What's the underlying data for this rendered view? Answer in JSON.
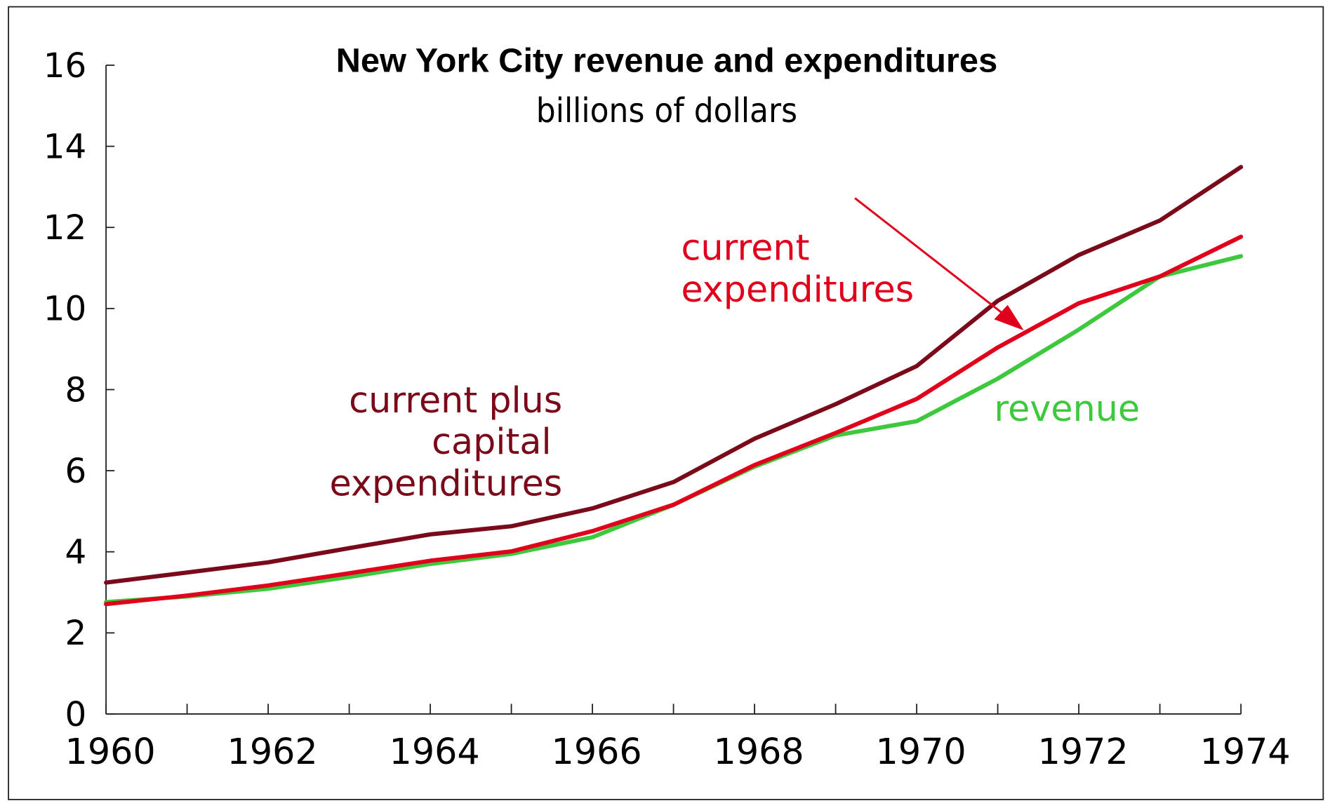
{
  "chart_data": {
    "type": "line",
    "title": "New York City revenue and expenditures",
    "subtitle": "billions of dollars",
    "xlabel": "",
    "ylabel": "",
    "xlim": [
      1960,
      1974
    ],
    "ylim": [
      0,
      16
    ],
    "grid": false,
    "x": [
      1960,
      1961,
      1962,
      1963,
      1964,
      1965,
      1966,
      1967,
      1968,
      1969,
      1970,
      1971,
      1972,
      1973,
      1974
    ],
    "x_tick_labels": [
      "1960",
      "1962",
      "1964",
      "1966",
      "1968",
      "1970",
      "1972",
      "1974"
    ],
    "y_tick_labels": [
      "0",
      "2",
      "4",
      "6",
      "8",
      "10",
      "12",
      "14",
      "16"
    ],
    "series": [
      {
        "name": "current plus capital expenditures",
        "label_lines": [
          "current plus",
          "capital",
          "expenditures"
        ],
        "color": "#7a0a1a",
        "values": [
          3.24,
          3.49,
          3.74,
          4.09,
          4.43,
          4.63,
          5.07,
          5.72,
          6.79,
          7.64,
          8.58,
          10.19,
          11.32,
          12.17,
          13.49
        ]
      },
      {
        "name": "current expenditures",
        "label_lines": [
          "current",
          "expenditures"
        ],
        "color": "#e0001b",
        "values": [
          2.71,
          2.92,
          3.17,
          3.47,
          3.78,
          4.01,
          4.51,
          5.16,
          6.14,
          6.93,
          7.77,
          9.04,
          10.13,
          10.79,
          11.77
        ]
      },
      {
        "name": "revenue",
        "label_lines": [
          "revenue"
        ],
        "color": "#3ec83e",
        "values": [
          2.76,
          2.9,
          3.09,
          3.38,
          3.7,
          3.95,
          4.36,
          5.16,
          6.1,
          6.87,
          7.22,
          8.27,
          9.48,
          10.79,
          11.29
        ]
      }
    ]
  }
}
